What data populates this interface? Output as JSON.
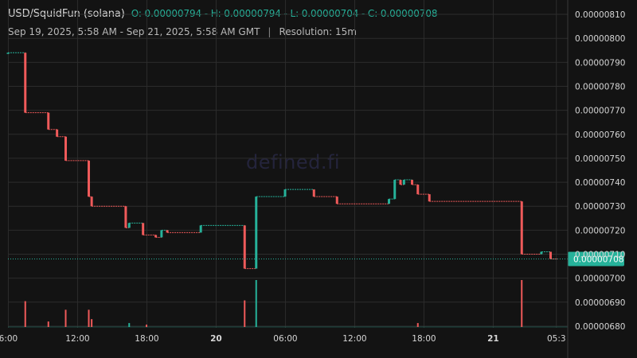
{
  "header": {
    "pair": "USD/SquidFun (solana)",
    "ohlc": "O: 0.00000794 - H: 0.00000794 - L: 0.00000704 - C: 0.00000708",
    "date_range": "Sep 19, 2025, 5:58 AM - Sep 21, 2025, 5:58 AM GMT",
    "separator": "|",
    "resolution": "Resolution: 15m"
  },
  "watermark": "defined.fi",
  "colors": {
    "background": "#131313",
    "grid": "#2c2c2c",
    "up": "#26b29a",
    "down": "#ef5a5a",
    "price_line": "#26b29a",
    "last_label_bg": "#26b29a"
  },
  "chart_data": {
    "type": "candlestick",
    "resolution": "15m",
    "y_axis": {
      "ticks": [
        "0.00000680",
        "0.00000690",
        "0.00000700",
        "0.00000710",
        "0.00000720",
        "0.00000730",
        "0.00000740",
        "0.00000750",
        "0.00000760",
        "0.00000770",
        "0.00000780",
        "0.00000790",
        "0.00000800",
        "0.00000810"
      ],
      "ylim": [
        6.76e-06,
        8.13e-06
      ]
    },
    "x_axis": {
      "ticks": [
        {
          "label": "6:00",
          "hour": 0.03,
          "bold": false
        },
        {
          "label": "12:00",
          "hour": 6.03,
          "bold": false
        },
        {
          "label": "18:00",
          "hour": 12.03,
          "bold": false
        },
        {
          "label": "20",
          "hour": 18.03,
          "bold": true
        },
        {
          "label": "06:00",
          "hour": 24.03,
          "bold": false
        },
        {
          "label": "12:00",
          "hour": 30.03,
          "bold": false
        },
        {
          "label": "18:00",
          "hour": 36.03,
          "bold": false
        },
        {
          "label": "21",
          "hour": 42.03,
          "bold": true
        },
        {
          "label": "05:3",
          "hour": 47.5,
          "bold": false
        }
      ],
      "hour_range": [
        0,
        48
      ]
    },
    "last_price": 7.08e-06,
    "last_price_label": "0.00000708",
    "candles": [
      {
        "t": 0.0,
        "o": 7.94,
        "c": 7.94
      },
      {
        "t": 1.5,
        "o": 7.94,
        "c": 7.69
      },
      {
        "t": 3.5,
        "o": 7.69,
        "c": 7.62
      },
      {
        "t": 4.25,
        "o": 7.62,
        "c": 7.59
      },
      {
        "t": 5.0,
        "o": 7.59,
        "c": 7.49
      },
      {
        "t": 7.0,
        "o": 7.49,
        "c": 7.34
      },
      {
        "t": 7.25,
        "o": 7.34,
        "c": 7.3
      },
      {
        "t": 10.2,
        "o": 7.3,
        "c": 7.21
      },
      {
        "t": 10.5,
        "o": 7.21,
        "c": 7.23
      },
      {
        "t": 11.7,
        "o": 7.23,
        "c": 7.18
      },
      {
        "t": 12.8,
        "o": 7.18,
        "c": 7.17
      },
      {
        "t": 13.3,
        "o": 7.17,
        "c": 7.2
      },
      {
        "t": 13.8,
        "o": 7.2,
        "c": 7.19
      },
      {
        "t": 16.7,
        "o": 7.19,
        "c": 7.22
      },
      {
        "t": 20.5,
        "o": 7.22,
        "c": 7.04
      },
      {
        "t": 21.5,
        "o": 7.04,
        "c": 7.34
      },
      {
        "t": 24.0,
        "o": 7.34,
        "c": 7.37
      },
      {
        "t": 26.5,
        "o": 7.37,
        "c": 7.34
      },
      {
        "t": 28.5,
        "o": 7.34,
        "c": 7.31
      },
      {
        "t": 33.0,
        "o": 7.31,
        "c": 7.33
      },
      {
        "t": 33.5,
        "o": 7.33,
        "c": 7.41
      },
      {
        "t": 34.0,
        "o": 7.41,
        "c": 7.39
      },
      {
        "t": 34.3,
        "o": 7.39,
        "c": 7.41
      },
      {
        "t": 35.0,
        "o": 7.41,
        "c": 7.39
      },
      {
        "t": 35.5,
        "o": 7.39,
        "c": 7.35
      },
      {
        "t": 36.5,
        "o": 7.35,
        "c": 7.32
      },
      {
        "t": 44.5,
        "o": 7.32,
        "c": 7.1
      },
      {
        "t": 46.2,
        "o": 7.1,
        "c": 7.11
      },
      {
        "t": 47.0,
        "o": 7.11,
        "c": 7.08
      }
    ],
    "volumes": [
      {
        "t": 1.5,
        "v": 0.33,
        "dir": "down"
      },
      {
        "t": 3.5,
        "v": 0.07,
        "dir": "down"
      },
      {
        "t": 5.0,
        "v": 0.22,
        "dir": "down"
      },
      {
        "t": 7.0,
        "v": 0.22,
        "dir": "down"
      },
      {
        "t": 7.25,
        "v": 0.1,
        "dir": "down"
      },
      {
        "t": 10.5,
        "v": 0.05,
        "dir": "up"
      },
      {
        "t": 12.0,
        "v": 0.03,
        "dir": "down"
      },
      {
        "t": 20.5,
        "v": 0.34,
        "dir": "down"
      },
      {
        "t": 21.5,
        "v": 0.6,
        "dir": "up"
      },
      {
        "t": 35.5,
        "v": 0.05,
        "dir": "down"
      },
      {
        "t": 44.5,
        "v": 0.6,
        "dir": "down"
      }
    ]
  }
}
